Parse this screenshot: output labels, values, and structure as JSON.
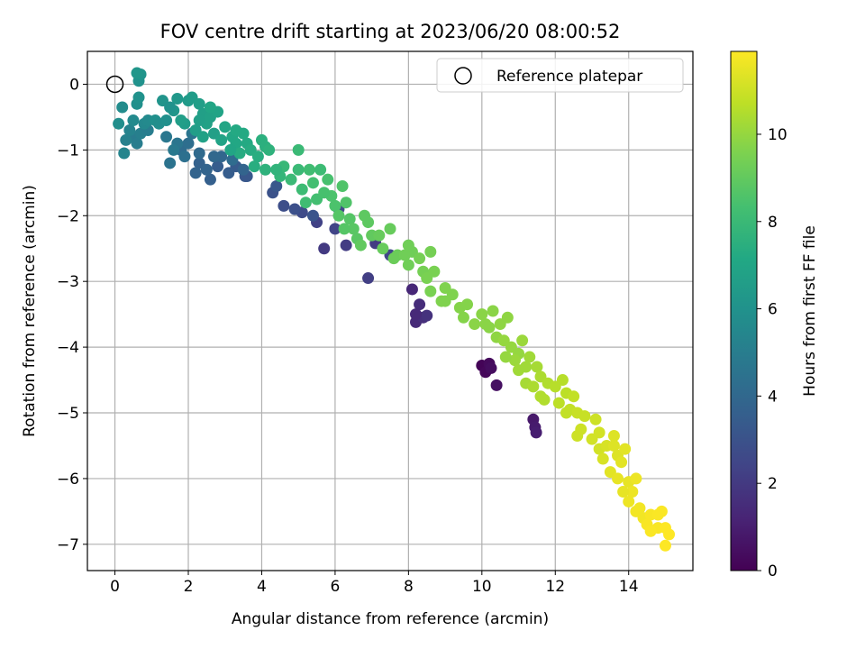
{
  "chart_data": {
    "type": "scatter",
    "title": "FOV centre drift starting at 2023/06/20 08:00:52",
    "xlabel": "Angular distance from reference (arcmin)",
    "ylabel": "Rotation from reference (arcmin)",
    "xlim": [
      -0.75,
      15.75
    ],
    "ylim": [
      -7.4,
      0.5
    ],
    "xticks": [
      0,
      2,
      4,
      6,
      8,
      10,
      12,
      14
    ],
    "yticks": [
      0,
      -1,
      -2,
      -3,
      -4,
      -5,
      -6,
      -7
    ],
    "xtick_labels": [
      "0",
      "2",
      "4",
      "6",
      "8",
      "10",
      "12",
      "14"
    ],
    "ytick_labels": [
      "0",
      "−1",
      "−2",
      "−3",
      "−4",
      "−5",
      "−6",
      "−7"
    ],
    "grid": true,
    "legend": {
      "position": "top-right",
      "entries": [
        "Reference platepar"
      ]
    },
    "reference_point": {
      "label": "Reference platepar",
      "x": 0,
      "y": 0
    },
    "colorbar": {
      "label": "Hours from first FF file",
      "colormap": "viridis",
      "range": [
        0,
        11.9
      ],
      "ticks": [
        0,
        2,
        4,
        6,
        8,
        10
      ],
      "tick_labels": [
        "0",
        "2",
        "4",
        "6",
        "8",
        "10"
      ]
    },
    "series": [
      {
        "points": [
          [
            10.0,
            -4.28,
            0.1
          ],
          [
            10.1,
            -4.38,
            0.2
          ],
          [
            10.2,
            -4.25,
            0.3
          ],
          [
            10.25,
            -4.32,
            0.4
          ],
          [
            10.4,
            -4.58,
            0.5
          ],
          [
            11.4,
            -5.1,
            0.8
          ],
          [
            11.45,
            -5.22,
            0.9
          ],
          [
            11.48,
            -5.3,
            1.0
          ],
          [
            8.1,
            -3.12,
            1.3
          ],
          [
            8.2,
            -3.62,
            1.4
          ],
          [
            8.3,
            -3.35,
            1.5
          ],
          [
            8.4,
            -3.55,
            1.6
          ],
          [
            8.5,
            -3.52,
            1.7
          ],
          [
            8.2,
            -3.5,
            1.4
          ],
          [
            5.7,
            -2.5,
            2.0
          ],
          [
            6.3,
            -2.45,
            2.1
          ],
          [
            6.9,
            -2.95,
            2.2
          ],
          [
            5.5,
            -2.1,
            2.3
          ],
          [
            6.0,
            -2.2,
            2.4
          ],
          [
            7.1,
            -2.42,
            2.1
          ],
          [
            6.1,
            -1.9,
            2.6
          ],
          [
            5.1,
            -1.95,
            2.7
          ],
          [
            4.6,
            -1.85,
            2.8
          ],
          [
            4.3,
            -1.65,
            3.0
          ],
          [
            7.5,
            -2.6,
            2.5
          ],
          [
            4.9,
            -1.9,
            2.9
          ],
          [
            5.4,
            -2.0,
            3.1
          ],
          [
            4.4,
            -1.55,
            3.2
          ],
          [
            3.6,
            -1.4,
            3.3
          ],
          [
            3.3,
            -1.25,
            3.4
          ],
          [
            2.8,
            -1.25,
            3.5
          ],
          [
            2.6,
            -1.45,
            3.6
          ],
          [
            2.3,
            -1.2,
            3.7
          ],
          [
            2.2,
            -1.35,
            3.8
          ],
          [
            3.1,
            -1.35,
            3.5
          ],
          [
            2.9,
            -1.1,
            3.9
          ],
          [
            2.5,
            -1.3,
            3.8
          ],
          [
            3.55,
            -1.4,
            3.2
          ],
          [
            2.7,
            -1.1,
            4.0
          ],
          [
            2.3,
            -1.05,
            4.1
          ],
          [
            1.8,
            -1.0,
            4.2
          ],
          [
            2.0,
            -0.9,
            4.3
          ],
          [
            3.2,
            -1.15,
            4.2
          ],
          [
            3.5,
            -1.3,
            3.8
          ],
          [
            1.5,
            -1.2,
            4.5
          ],
          [
            1.7,
            -0.9,
            4.6
          ],
          [
            1.9,
            -1.1,
            4.4
          ],
          [
            1.4,
            -0.8,
            4.7
          ],
          [
            1.6,
            -1.0,
            4.8
          ],
          [
            2.1,
            -0.75,
            4.6
          ],
          [
            0.5,
            -0.8,
            4.9
          ],
          [
            0.6,
            -0.9,
            5.0
          ],
          [
            0.7,
            -0.75,
            5.1
          ],
          [
            0.3,
            -0.85,
            5.2
          ],
          [
            0.4,
            -0.7,
            5.3
          ],
          [
            0.9,
            -0.7,
            5.0
          ],
          [
            0.8,
            -0.6,
            5.5
          ],
          [
            0.9,
            -0.55,
            5.6
          ],
          [
            0.2,
            -0.35,
            5.7
          ],
          [
            0.1,
            -0.6,
            5.8
          ],
          [
            0.6,
            -0.3,
            5.9
          ],
          [
            0.25,
            -1.05,
            5.4
          ],
          [
            0.65,
            0.05,
            6.0
          ],
          [
            0.7,
            0.15,
            6.1
          ],
          [
            0.6,
            0.17,
            6.2
          ],
          [
            0.65,
            -0.2,
            6.0
          ],
          [
            1.1,
            -0.55,
            5.9
          ],
          [
            0.5,
            -0.55,
            5.6
          ],
          [
            1.2,
            -0.6,
            5.8
          ],
          [
            1.4,
            -0.55,
            5.9
          ],
          [
            1.3,
            -0.25,
            6.1
          ],
          [
            1.6,
            -0.4,
            6.2
          ],
          [
            1.7,
            -0.22,
            6.3
          ],
          [
            1.5,
            -0.35,
            6.0
          ],
          [
            2.0,
            -0.25,
            6.4
          ],
          [
            2.1,
            -0.2,
            6.5
          ],
          [
            2.3,
            -0.3,
            6.6
          ],
          [
            2.4,
            -0.45,
            6.7
          ],
          [
            2.6,
            -0.5,
            6.8
          ],
          [
            1.9,
            -0.6,
            6.5
          ],
          [
            2.2,
            -0.7,
            6.6
          ],
          [
            2.5,
            -0.6,
            6.8
          ],
          [
            2.8,
            -0.42,
            6.9
          ],
          [
            2.6,
            -0.35,
            7.0
          ],
          [
            1.8,
            -0.55,
            6.6
          ],
          [
            2.7,
            -0.75,
            6.7
          ],
          [
            2.4,
            -0.8,
            6.8
          ],
          [
            3.0,
            -0.65,
            7.0
          ],
          [
            3.2,
            -0.8,
            7.1
          ],
          [
            3.3,
            -0.9,
            7.1
          ],
          [
            2.9,
            -0.85,
            6.9
          ],
          [
            2.3,
            -0.55,
            6.7
          ],
          [
            3.5,
            -0.75,
            7.2
          ],
          [
            3.6,
            -0.9,
            7.2
          ],
          [
            3.7,
            -1.0,
            7.3
          ],
          [
            3.4,
            -1.05,
            7.3
          ],
          [
            3.9,
            -1.1,
            7.4
          ],
          [
            3.15,
            -1.0,
            7.0
          ],
          [
            4.0,
            -0.85,
            7.5
          ],
          [
            4.1,
            -0.95,
            7.5
          ],
          [
            4.2,
            -1.0,
            7.6
          ],
          [
            3.8,
            -1.25,
            7.4
          ],
          [
            4.1,
            -1.3,
            7.6
          ],
          [
            3.3,
            -0.7,
            7.2
          ],
          [
            4.5,
            -1.4,
            7.8
          ],
          [
            4.6,
            -1.25,
            7.9
          ],
          [
            4.8,
            -1.45,
            8.0
          ],
          [
            5.0,
            -1.3,
            8.0
          ],
          [
            5.1,
            -1.6,
            8.1
          ],
          [
            4.4,
            -1.3,
            7.7
          ],
          [
            5.0,
            -1.0,
            8.0
          ],
          [
            5.3,
            -1.3,
            8.2
          ],
          [
            5.4,
            -1.5,
            8.3
          ],
          [
            5.5,
            -1.75,
            8.3
          ],
          [
            5.2,
            -1.8,
            8.2
          ],
          [
            5.6,
            -1.3,
            8.1
          ],
          [
            5.8,
            -1.45,
            8.4
          ],
          [
            5.9,
            -1.7,
            8.5
          ],
          [
            6.0,
            -1.85,
            8.5
          ],
          [
            6.2,
            -1.55,
            8.6
          ],
          [
            6.3,
            -1.8,
            8.6
          ],
          [
            5.7,
            -1.65,
            8.4
          ],
          [
            6.1,
            -2.0,
            8.7
          ],
          [
            6.4,
            -2.05,
            8.7
          ],
          [
            6.5,
            -2.2,
            8.8
          ],
          [
            6.8,
            -2.0,
            8.9
          ],
          [
            6.9,
            -2.1,
            8.9
          ],
          [
            6.6,
            -2.35,
            8.8
          ],
          [
            6.7,
            -2.45,
            9.0
          ],
          [
            7.0,
            -2.3,
            9.0
          ],
          [
            7.2,
            -2.3,
            9.1
          ],
          [
            7.5,
            -2.2,
            9.1
          ],
          [
            7.7,
            -2.6,
            9.2
          ],
          [
            6.25,
            -2.2,
            8.7
          ],
          [
            7.6,
            -2.65,
            9.2
          ],
          [
            7.9,
            -2.6,
            9.3
          ],
          [
            8.0,
            -2.75,
            9.3
          ],
          [
            8.1,
            -2.55,
            9.3
          ],
          [
            8.3,
            -2.65,
            9.4
          ],
          [
            7.3,
            -2.5,
            9.1
          ],
          [
            8.4,
            -2.85,
            9.4
          ],
          [
            8.5,
            -2.95,
            9.5
          ],
          [
            8.7,
            -2.85,
            9.5
          ],
          [
            8.6,
            -3.15,
            9.5
          ],
          [
            9.0,
            -3.1,
            9.6
          ],
          [
            8.0,
            -2.45,
            9.3
          ],
          [
            8.9,
            -3.3,
            9.6
          ],
          [
            9.2,
            -3.2,
            9.6
          ],
          [
            9.4,
            -3.4,
            9.7
          ],
          [
            9.6,
            -3.35,
            9.7
          ],
          [
            9.5,
            -3.55,
            9.7
          ],
          [
            8.6,
            -2.55,
            9.4
          ],
          [
            9.8,
            -3.65,
            9.8
          ],
          [
            10.0,
            -3.5,
            9.8
          ],
          [
            10.2,
            -3.7,
            9.8
          ],
          [
            10.3,
            -3.45,
            9.8
          ],
          [
            10.5,
            -3.65,
            9.9
          ],
          [
            9.0,
            -3.3,
            9.6
          ],
          [
            10.4,
            -3.85,
            9.9
          ],
          [
            10.7,
            -3.55,
            9.9
          ],
          [
            10.6,
            -3.9,
            10.0
          ],
          [
            10.8,
            -4.0,
            10.0
          ],
          [
            11.0,
            -4.1,
            10.0
          ],
          [
            10.1,
            -3.65,
            9.8
          ],
          [
            10.9,
            -4.2,
            10.1
          ],
          [
            11.1,
            -3.9,
            10.1
          ],
          [
            11.2,
            -4.3,
            10.2
          ],
          [
            11.3,
            -4.15,
            10.2
          ],
          [
            11.5,
            -4.3,
            10.3
          ],
          [
            10.65,
            -4.15,
            10.0
          ],
          [
            11.2,
            -4.55,
            10.3
          ],
          [
            11.4,
            -4.6,
            10.4
          ],
          [
            11.6,
            -4.45,
            10.4
          ],
          [
            11.8,
            -4.55,
            10.5
          ],
          [
            11.6,
            -4.75,
            10.5
          ],
          [
            11.0,
            -4.35,
            10.2
          ],
          [
            12.0,
            -4.6,
            10.6
          ],
          [
            12.2,
            -4.5,
            10.6
          ],
          [
            12.3,
            -4.7,
            10.7
          ],
          [
            12.1,
            -4.85,
            10.7
          ],
          [
            12.5,
            -4.75,
            10.8
          ],
          [
            11.7,
            -4.8,
            10.5
          ],
          [
            12.4,
            -4.95,
            10.8
          ],
          [
            12.6,
            -5.0,
            10.9
          ],
          [
            12.8,
            -5.05,
            10.9
          ],
          [
            12.7,
            -5.25,
            11.0
          ],
          [
            12.6,
            -5.35,
            11.0
          ],
          [
            12.3,
            -5.0,
            10.8
          ],
          [
            13.1,
            -5.1,
            11.0
          ],
          [
            13.0,
            -5.4,
            11.1
          ],
          [
            13.2,
            -5.55,
            11.1
          ],
          [
            13.4,
            -5.5,
            11.2
          ],
          [
            13.3,
            -5.7,
            11.2
          ],
          [
            13.2,
            -5.3,
            11.1
          ],
          [
            13.6,
            -5.5,
            11.3
          ],
          [
            13.7,
            -5.65,
            11.3
          ],
          [
            13.8,
            -5.75,
            11.4
          ],
          [
            13.5,
            -5.9,
            11.4
          ],
          [
            13.9,
            -5.55,
            11.4
          ],
          [
            13.6,
            -5.35,
            11.3
          ],
          [
            13.7,
            -6.0,
            11.5
          ],
          [
            14.0,
            -6.05,
            11.5
          ],
          [
            14.1,
            -6.2,
            11.6
          ],
          [
            14.0,
            -6.35,
            11.6
          ],
          [
            14.2,
            -6.0,
            11.6
          ],
          [
            13.85,
            -6.2,
            11.5
          ],
          [
            14.3,
            -6.45,
            11.7
          ],
          [
            14.4,
            -6.6,
            11.7
          ],
          [
            14.5,
            -6.7,
            11.8
          ],
          [
            14.6,
            -6.55,
            11.8
          ],
          [
            14.8,
            -6.75,
            11.8
          ],
          [
            14.2,
            -6.5,
            11.7
          ],
          [
            14.8,
            -6.55,
            11.85
          ],
          [
            15.0,
            -6.75,
            11.9
          ],
          [
            15.1,
            -6.85,
            11.9
          ],
          [
            15.0,
            -7.02,
            11.9
          ],
          [
            14.9,
            -6.5,
            11.85
          ],
          [
            14.6,
            -6.8,
            11.85
          ]
        ]
      }
    ]
  }
}
